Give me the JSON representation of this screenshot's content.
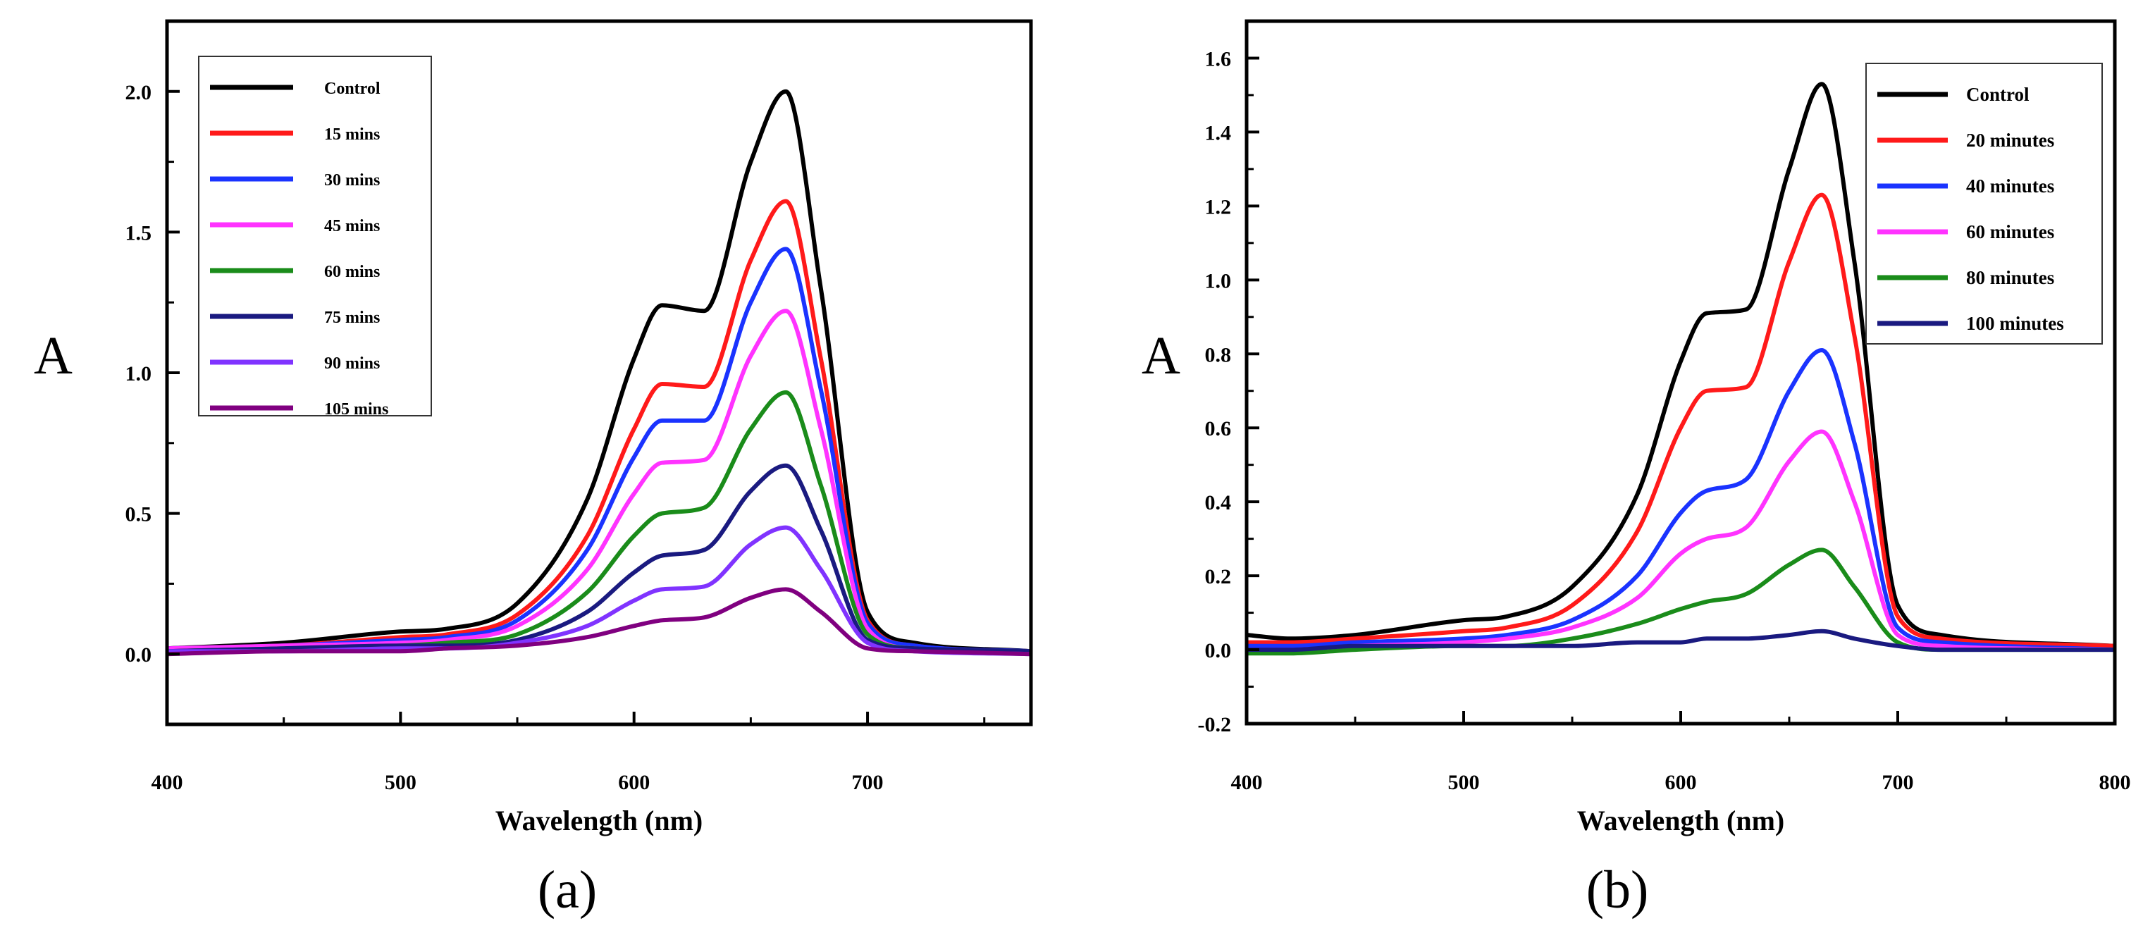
{
  "chart_data": [
    {
      "type": "line",
      "panel_label": "(a)",
      "title": "",
      "xlabel": "Wavelength (nm)",
      "ylabel": "A",
      "xlim": [
        400,
        770
      ],
      "ylim": [
        -0.25,
        2.25
      ],
      "xticks": [
        "400",
        "500",
        "600",
        "700"
      ],
      "yticks": [
        "0.0",
        "0.5",
        "1.0",
        "1.5",
        "2.0"
      ],
      "legend_position": "top-left",
      "x": [
        400,
        450,
        500,
        520,
        550,
        580,
        600,
        612,
        630,
        650,
        665,
        680,
        700,
        720,
        770
      ],
      "series": [
        {
          "name": "Control",
          "color": "#000000",
          "values": [
            0.02,
            0.04,
            0.08,
            0.09,
            0.18,
            0.55,
            1.05,
            1.24,
            1.22,
            1.75,
            2.0,
            1.3,
            0.15,
            0.04,
            0.01
          ]
        },
        {
          "name": "15 mins",
          "color": "#ff1a1a",
          "values": [
            0.02,
            0.03,
            0.06,
            0.07,
            0.14,
            0.42,
            0.8,
            0.96,
            0.95,
            1.4,
            1.61,
            1.05,
            0.12,
            0.03,
            0.01
          ]
        },
        {
          "name": "30 mins",
          "color": "#1a33ff",
          "values": [
            0.02,
            0.03,
            0.05,
            0.06,
            0.12,
            0.37,
            0.7,
            0.83,
            0.83,
            1.25,
            1.44,
            0.94,
            0.11,
            0.03,
            0.01
          ]
        },
        {
          "name": "45 mins",
          "color": "#ff33ff",
          "values": [
            0.02,
            0.03,
            0.04,
            0.05,
            0.1,
            0.3,
            0.57,
            0.68,
            0.69,
            1.06,
            1.22,
            0.8,
            0.09,
            0.02,
            0.01
          ]
        },
        {
          "name": "60 mins",
          "color": "#1a8c1a",
          "values": [
            0.01,
            0.02,
            0.03,
            0.04,
            0.07,
            0.22,
            0.42,
            0.5,
            0.52,
            0.8,
            0.93,
            0.6,
            0.07,
            0.02,
            0.01
          ]
        },
        {
          "name": "75 mins",
          "color": "#1a1a80",
          "values": [
            0.01,
            0.02,
            0.03,
            0.03,
            0.05,
            0.15,
            0.29,
            0.35,
            0.37,
            0.58,
            0.67,
            0.44,
            0.05,
            0.02,
            0.01
          ]
        },
        {
          "name": "90 mins",
          "color": "#8033ff",
          "values": [
            0.01,
            0.01,
            0.02,
            0.02,
            0.04,
            0.1,
            0.19,
            0.23,
            0.24,
            0.39,
            0.45,
            0.3,
            0.04,
            0.01,
            0.0
          ]
        },
        {
          "name": "105 mins",
          "color": "#800080",
          "values": [
            0.0,
            0.01,
            0.01,
            0.02,
            0.03,
            0.06,
            0.1,
            0.12,
            0.13,
            0.2,
            0.23,
            0.15,
            0.02,
            0.01,
            0.0
          ]
        }
      ]
    },
    {
      "type": "line",
      "panel_label": "(b)",
      "title": "",
      "xlabel": "Wavelength (nm)",
      "ylabel": "A",
      "xlim": [
        400,
        800
      ],
      "ylim": [
        -0.2,
        1.7
      ],
      "xticks": [
        "400",
        "500",
        "600",
        "700",
        "800"
      ],
      "yticks": [
        "-0.2",
        "0.0",
        "0.2",
        "0.4",
        "0.6",
        "0.8",
        "1.0",
        "1.2",
        "1.4",
        "1.6"
      ],
      "legend_position": "top-right",
      "x": [
        400,
        420,
        450,
        500,
        520,
        550,
        580,
        600,
        612,
        630,
        650,
        665,
        680,
        700,
        720,
        800
      ],
      "series": [
        {
          "name": "Control",
          "color": "#000000",
          "values": [
            0.04,
            0.03,
            0.04,
            0.08,
            0.09,
            0.17,
            0.42,
            0.78,
            0.91,
            0.92,
            1.3,
            1.53,
            1.05,
            0.12,
            0.04,
            0.01
          ]
        },
        {
          "name": "20 minutes",
          "color": "#ff1a1a",
          "values": [
            0.02,
            0.02,
            0.03,
            0.05,
            0.06,
            0.12,
            0.32,
            0.6,
            0.7,
            0.71,
            1.05,
            1.23,
            0.85,
            0.09,
            0.03,
            0.01
          ]
        },
        {
          "name": "40 minutes",
          "color": "#1a33ff",
          "values": [
            0.01,
            0.01,
            0.02,
            0.03,
            0.04,
            0.08,
            0.2,
            0.37,
            0.43,
            0.46,
            0.7,
            0.81,
            0.56,
            0.06,
            0.02,
            0.0
          ]
        },
        {
          "name": "60 minutes",
          "color": "#ff33ff",
          "values": [
            0.0,
            0.0,
            0.01,
            0.02,
            0.03,
            0.06,
            0.14,
            0.26,
            0.3,
            0.33,
            0.51,
            0.59,
            0.4,
            0.04,
            0.01,
            0.0
          ]
        },
        {
          "name": "80 minutes",
          "color": "#1a8c1a",
          "values": [
            -0.01,
            -0.01,
            0.0,
            0.01,
            0.01,
            0.03,
            0.07,
            0.11,
            0.13,
            0.15,
            0.23,
            0.27,
            0.17,
            0.02,
            0.0,
            0.0
          ]
        },
        {
          "name": "100 minutes",
          "color": "#1a1a80",
          "values": [
            0.0,
            0.0,
            0.01,
            0.01,
            0.01,
            0.01,
            0.02,
            0.02,
            0.03,
            0.03,
            0.04,
            0.05,
            0.03,
            0.01,
            0.0,
            0.0
          ]
        }
      ]
    }
  ]
}
